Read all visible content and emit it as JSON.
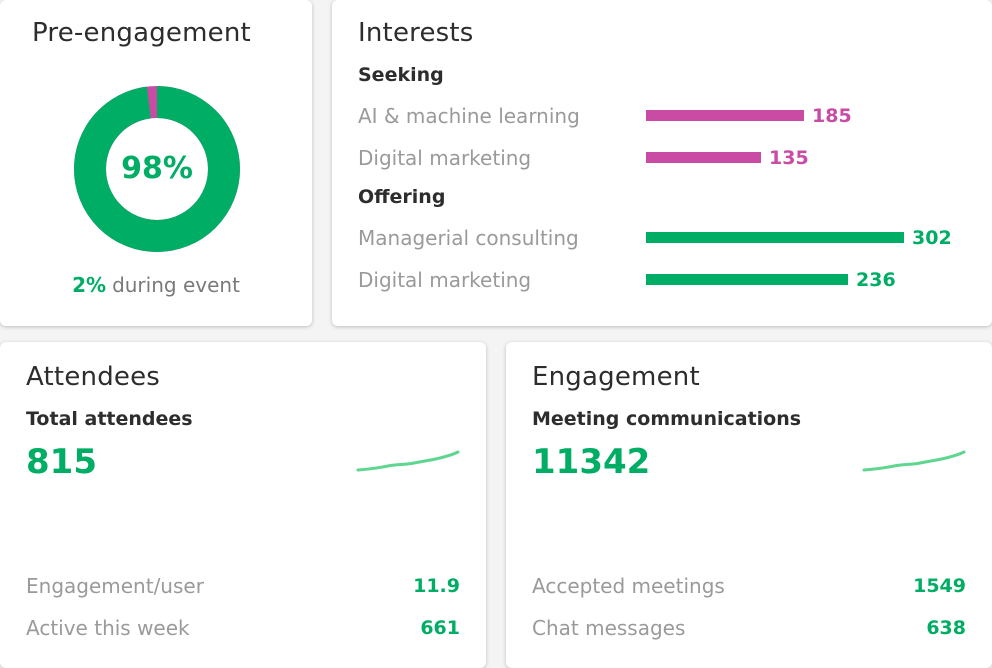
{
  "colors": {
    "green": "#00ad64",
    "magenta": "#c94ba3",
    "muted": "#9a9a9a"
  },
  "pre_engagement": {
    "title": "Pre-engagement",
    "percent_value": 98,
    "percent_label": "98%",
    "during_pct": "2%",
    "during_text": "during event"
  },
  "interests": {
    "title": "Interests",
    "max_value": 302,
    "seeking": {
      "label": "Seeking",
      "items": [
        {
          "name": "AI & machine learning",
          "value": 185,
          "value_label": "185"
        },
        {
          "name": "Digital marketing",
          "value": 135,
          "value_label": "135"
        }
      ]
    },
    "offering": {
      "label": "Offering",
      "items": [
        {
          "name": "Managerial consulting",
          "value": 302,
          "value_label": "302"
        },
        {
          "name": "Digital marketing",
          "value": 236,
          "value_label": "236"
        }
      ]
    }
  },
  "attendees": {
    "title": "Attendees",
    "metric_label": "Total attendees",
    "metric_value": "815",
    "stats": [
      {
        "label": "Engagement/user",
        "value": "11.9"
      },
      {
        "label": "Active this week",
        "value": "661"
      }
    ]
  },
  "engagement": {
    "title": "Engagement",
    "metric_label": "Meeting communications",
    "metric_value": "11342",
    "stats": [
      {
        "label": "Accepted meetings",
        "value": "1549"
      },
      {
        "label": "Chat messages",
        "value": "638"
      }
    ]
  }
}
